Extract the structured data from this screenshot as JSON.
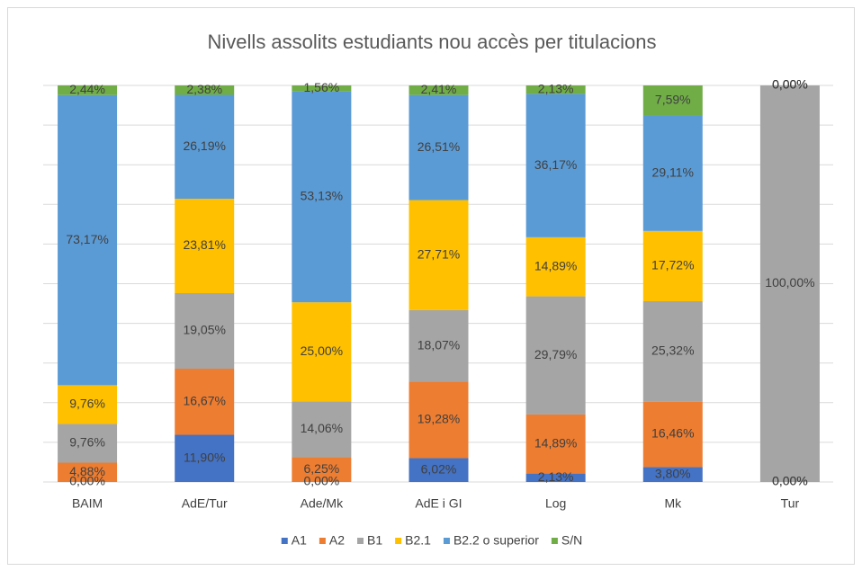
{
  "chart_data": {
    "type": "stacked_bar",
    "title": "Nivells assolits estudiants nou accès per titulacions",
    "categories": [
      "BAIM",
      "AdE/Tur",
      "Ade/Mk",
      "AdE i GI",
      "Log",
      "Mk",
      "Tur"
    ],
    "ylim": [
      0,
      100
    ],
    "yticks": [
      0,
      10,
      20,
      30,
      40,
      50,
      60,
      70,
      80,
      90,
      100
    ],
    "grid": true,
    "legend": "bottom",
    "series": [
      {
        "name": "A1",
        "color": "#4472c4",
        "values": [
          0,
          11.9,
          0,
          6.02,
          2.13,
          3.8,
          0
        ],
        "value_labels": [
          "0,00%",
          "11,90%",
          "0,00%",
          "6,02%",
          "2,13%",
          "3,80%",
          "0,00%"
        ]
      },
      {
        "name": "A2",
        "color": "#ed7d31",
        "values": [
          4.88,
          16.67,
          6.25,
          19.28,
          14.89,
          16.46,
          0
        ],
        "value_labels": [
          "4,88%",
          "16,67%",
          "6,25%",
          "19,28%",
          "14,89%",
          "16,46%",
          "0,00%"
        ]
      },
      {
        "name": "B1",
        "color": "#a5a5a5",
        "values": [
          9.76,
          19.05,
          14.06,
          18.07,
          29.79,
          25.32,
          100
        ],
        "value_labels": [
          "9,76%",
          "19,05%",
          "14,06%",
          "18,07%",
          "29,79%",
          "25,32%",
          "100,00%"
        ]
      },
      {
        "name": "B2.1",
        "color": "#ffc000",
        "values": [
          9.76,
          23.81,
          25.0,
          27.71,
          14.89,
          17.72,
          0
        ],
        "value_labels": [
          "9,76%",
          "23,81%",
          "25,00%",
          "27,71%",
          "14,89%",
          "17,72%",
          "0,00%"
        ]
      },
      {
        "name": "B2.2 o superior",
        "color": "#5b9bd5",
        "values": [
          73.17,
          26.19,
          53.13,
          26.51,
          36.17,
          29.11,
          0
        ],
        "value_labels": [
          "73,17%",
          "26,19%",
          "53,13%",
          "26,51%",
          "36,17%",
          "29,11%",
          "0,00%"
        ]
      },
      {
        "name": "S/N",
        "color": "#70ad47",
        "values": [
          2.44,
          2.38,
          1.56,
          2.41,
          2.13,
          7.59,
          0
        ],
        "value_labels": [
          "2,44%",
          "2,38%",
          "1,56%",
          "2,41%",
          "2,13%",
          "7,59%",
          "0,00%"
        ]
      }
    ]
  }
}
